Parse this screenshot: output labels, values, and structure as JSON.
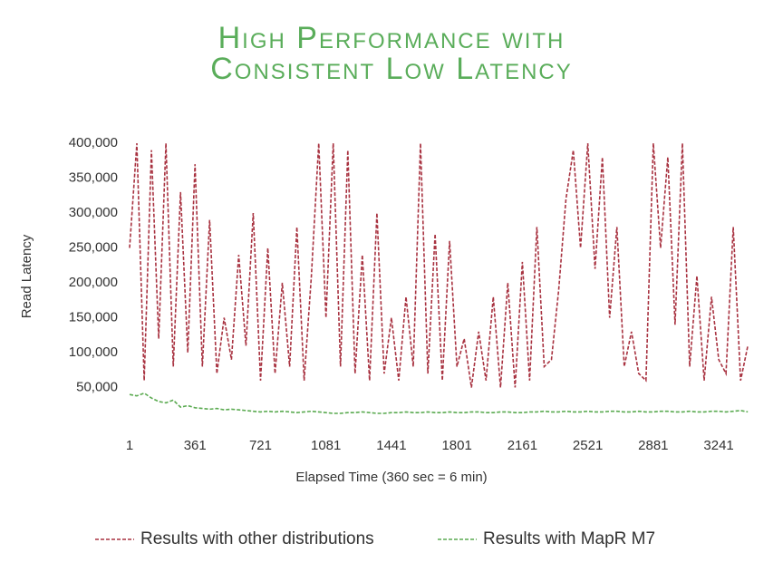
{
  "chart_data": {
    "type": "line",
    "title": [
      "High Performance with",
      "Consistent Low Latency"
    ],
    "x_label": "Elapsed Time (360 sec = 6 min)",
    "y_label": "Read Latency",
    "x": [
      1,
      41,
      81,
      121,
      161,
      201,
      241,
      281,
      321,
      361,
      401,
      441,
      481,
      521,
      561,
      601,
      641,
      681,
      721,
      761,
      801,
      841,
      881,
      921,
      961,
      1001,
      1041,
      1081,
      1121,
      1161,
      1201,
      1241,
      1281,
      1321,
      1361,
      1401,
      1441,
      1481,
      1521,
      1561,
      1601,
      1641,
      1681,
      1721,
      1761,
      1801,
      1841,
      1881,
      1921,
      1961,
      2001,
      2041,
      2081,
      2121,
      2161,
      2201,
      2241,
      2281,
      2321,
      2361,
      2401,
      2441,
      2481,
      2521,
      2561,
      2601,
      2641,
      2681,
      2721,
      2761,
      2801,
      2841,
      2881,
      2921,
      2961,
      3001,
      3041,
      3081,
      3121,
      3161,
      3201,
      3241,
      3281,
      3321,
      3361,
      3401
    ],
    "series": [
      {
        "name": "Results with other distributions",
        "color": "#a83240",
        "values": [
          250000,
          400000,
          60000,
          390000,
          120000,
          400000,
          80000,
          330000,
          100000,
          370000,
          80000,
          290000,
          70000,
          150000,
          90000,
          240000,
          110000,
          300000,
          60000,
          250000,
          70000,
          200000,
          80000,
          280000,
          60000,
          210000,
          400000,
          150000,
          400000,
          80000,
          390000,
          70000,
          240000,
          60000,
          300000,
          70000,
          150000,
          60000,
          180000,
          80000,
          400000,
          70000,
          270000,
          60000,
          260000,
          80000,
          120000,
          50000,
          130000,
          60000,
          180000,
          50000,
          200000,
          50000,
          230000,
          60000,
          280000,
          80000,
          90000,
          190000,
          320000,
          390000,
          250000,
          400000,
          220000,
          380000,
          150000,
          280000,
          80000,
          130000,
          70000,
          60000,
          400000,
          250000,
          380000,
          140000,
          400000,
          80000,
          210000,
          60000,
          180000,
          90000,
          70000,
          280000,
          60000,
          110000
        ]
      },
      {
        "name": "Results with MapR M7",
        "color": "#5aaa50",
        "values": [
          40000,
          38000,
          42000,
          35000,
          30000,
          28000,
          32000,
          22000,
          24000,
          21000,
          20000,
          19000,
          20000,
          18000,
          19000,
          18000,
          17000,
          16000,
          15000,
          16000,
          15000,
          16000,
          15000,
          14000,
          15000,
          16000,
          15000,
          14000,
          13000,
          13000,
          14000,
          14000,
          15000,
          14000,
          13000,
          13000,
          14000,
          14000,
          15000,
          14000,
          14000,
          15000,
          14000,
          14000,
          15000,
          14000,
          14000,
          15000,
          15000,
          14000,
          14000,
          15000,
          15000,
          14000,
          14000,
          15000,
          15000,
          16000,
          15000,
          15000,
          16000,
          15000,
          15000,
          16000,
          15000,
          15000,
          16000,
          16000,
          15000,
          15000,
          16000,
          15000,
          15000,
          16000,
          16000,
          15000,
          15000,
          16000,
          15000,
          15000,
          16000,
          16000,
          15000,
          16000,
          17000,
          15000
        ]
      }
    ],
    "xlim": [
      1,
      3420
    ],
    "xticks": [
      1,
      361,
      721,
      1081,
      1441,
      1801,
      2161,
      2521,
      2881,
      3241
    ],
    "ylim": [
      0,
      400000
    ],
    "yticks": [
      {
        "value": 50000,
        "label": "50,000"
      },
      {
        "value": 100000,
        "label": "100,000"
      },
      {
        "value": 150000,
        "label": "150,000"
      },
      {
        "value": 200000,
        "label": "200,000"
      },
      {
        "value": 250000,
        "label": "250,000"
      },
      {
        "value": 300000,
        "label": "300,000"
      },
      {
        "value": 350000,
        "label": "350,000"
      },
      {
        "value": 400000,
        "label": "400,000"
      }
    ],
    "grid": false
  }
}
